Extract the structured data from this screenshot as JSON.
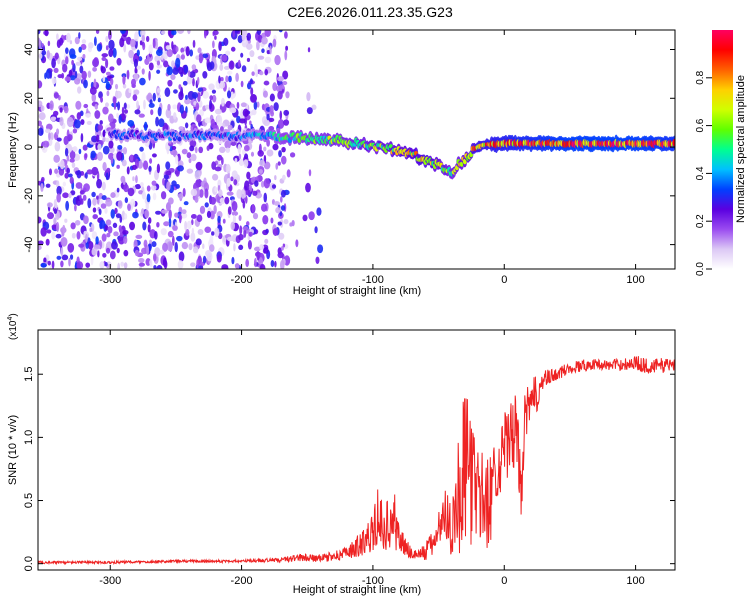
{
  "title": "C2E6.2026.011.23.35.G23",
  "chart_data": [
    {
      "type": "heatmap",
      "title": "C2E6.2026.011.23.35.G23",
      "xlabel": "Height of straight line (km)",
      "ylabel": "Frequency (Hz)",
      "xlim": [
        -355,
        130
      ],
      "ylim": [
        -50,
        48
      ],
      "xticks": [
        -300,
        -200,
        -100,
        0,
        100
      ],
      "yticks": [
        -40,
        -20,
        0,
        20,
        40
      ],
      "xtick_labels": [
        "-300",
        "-200",
        "-100",
        "0",
        "100"
      ],
      "ytick_labels": [
        "-40",
        "-20",
        "0",
        "20",
        "40"
      ],
      "colorbar": {
        "label": "Normalized spectral amplitude",
        "range": [
          0,
          1
        ],
        "ticks": [
          0.0,
          0.2,
          0.4,
          0.6,
          0.8
        ],
        "tick_labels": [
          "0.0",
          "0.2",
          "0.4",
          "0.6",
          "0.8"
        ],
        "colormap": [
          "#ffffff",
          "#dcc8f5",
          "#9a4bf0",
          "#5a00e0",
          "#0040ff",
          "#00c0ff",
          "#00ff90",
          "#60ff00",
          "#d0ff00",
          "#ffd000",
          "#ff6000",
          "#ff0000",
          "#ff0060"
        ]
      },
      "ridge": {
        "x": [
          -300,
          -250,
          -200,
          -160,
          -130,
          -100,
          -80,
          -60,
          -40,
          -20,
          0,
          50,
          100,
          130
        ],
        "y": [
          5,
          4.5,
          4.5,
          4,
          3,
          0.5,
          -1.5,
          -5,
          -10,
          0.5,
          1.5,
          1.5,
          1.5,
          1.5
        ],
        "amplitude": [
          0.35,
          0.35,
          0.35,
          0.55,
          0.6,
          0.65,
          0.7,
          0.75,
          0.6,
          0.8,
          0.85,
          0.95,
          0.95,
          0.9
        ]
      }
    },
    {
      "type": "line",
      "xlabel": "Height of straight line (km)",
      "ylabel": "SNR (10 * v/v)",
      "y_scale_label": "(x10",
      "y_scale_exponent": "4",
      "xlim": [
        -355,
        130
      ],
      "ylim": [
        -0.05,
        1.85
      ],
      "xticks": [
        -300,
        -200,
        -100,
        0,
        100
      ],
      "yticks": [
        0.0,
        0.5,
        1.0,
        1.5
      ],
      "xtick_labels": [
        "-300",
        "-200",
        "-100",
        "0",
        "100"
      ],
      "ytick_labels": [
        "0.0",
        "0.5",
        "1.0",
        "1.5"
      ],
      "series": [
        {
          "name": "SNR",
          "color": "#ee2222",
          "x": [
            -355,
            -300,
            -250,
            -200,
            -170,
            -155,
            -140,
            -120,
            -110,
            -100,
            -95,
            -90,
            -85,
            -80,
            -75,
            -70,
            -65,
            -60,
            -55,
            -50,
            -45,
            -40,
            -35,
            -30,
            -25,
            -20,
            -15,
            -10,
            -5,
            0,
            5,
            10,
            13,
            15,
            20,
            25,
            30,
            40,
            50,
            60,
            70,
            80,
            90,
            100,
            110,
            120,
            130
          ],
          "y": [
            0.01,
            0.01,
            0.02,
            0.02,
            0.03,
            0.05,
            0.04,
            0.08,
            0.15,
            0.25,
            0.33,
            0.3,
            0.32,
            0.22,
            0.12,
            0.08,
            0.07,
            0.1,
            0.15,
            0.28,
            0.4,
            0.3,
            0.55,
            0.75,
            0.65,
            0.6,
            0.45,
            0.55,
            0.78,
            0.9,
            1.0,
            1.05,
            0.45,
            1.1,
            1.25,
            1.35,
            1.45,
            1.5,
            1.55,
            1.57,
            1.58,
            1.57,
            1.58,
            1.59,
            1.56,
            1.57,
            1.58
          ],
          "noise": [
            0.01,
            0.01,
            0.01,
            0.01,
            0.02,
            0.03,
            0.03,
            0.05,
            0.1,
            0.15,
            0.2,
            0.2,
            0.2,
            0.15,
            0.08,
            0.05,
            0.05,
            0.08,
            0.1,
            0.15,
            0.2,
            0.25,
            0.5,
            0.65,
            0.5,
            0.45,
            0.35,
            0.4,
            0.25,
            0.3,
            0.3,
            0.3,
            0.2,
            0.25,
            0.2,
            0.15,
            0.08,
            0.05,
            0.05,
            0.05,
            0.04,
            0.04,
            0.05,
            0.06,
            0.06,
            0.06,
            0.06
          ]
        }
      ]
    }
  ]
}
